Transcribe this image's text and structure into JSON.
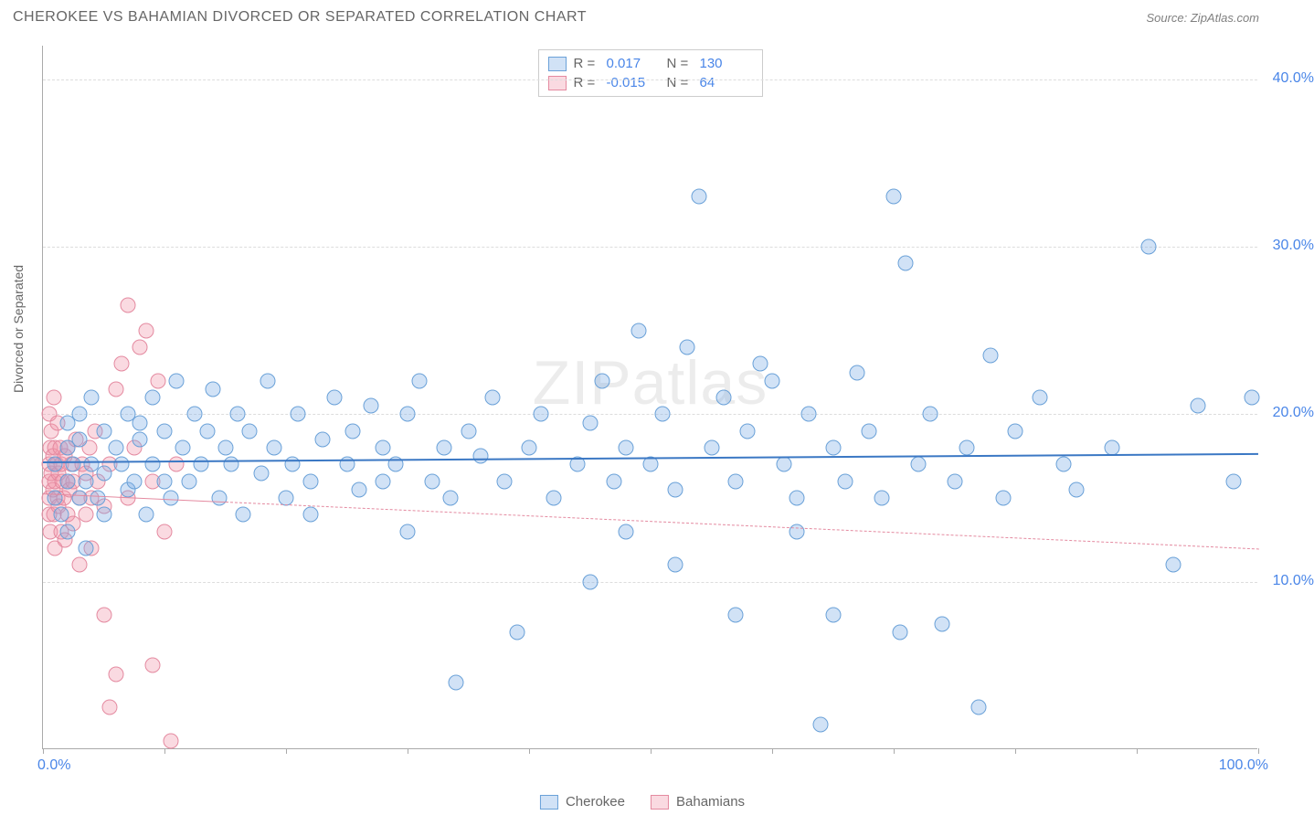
{
  "title": "CHEROKEE VS BAHAMIAN DIVORCED OR SEPARATED CORRELATION CHART",
  "source": "Source: ZipAtlas.com",
  "watermark": "ZIPatlas",
  "ylabel": "Divorced or Separated",
  "chart": {
    "type": "scatter",
    "xlim": [
      0,
      100
    ],
    "ylim": [
      0,
      42
    ],
    "y_ticks": [
      10.0,
      20.0,
      30.0,
      40.0
    ],
    "y_tick_labels": [
      "10.0%",
      "20.0%",
      "30.0%",
      "40.0%"
    ],
    "x_tick_positions": [
      0,
      10,
      20,
      30,
      40,
      50,
      60,
      70,
      80,
      90,
      100
    ],
    "x_axis_labels": [
      {
        "pos": 0,
        "text": "0.0%"
      },
      {
        "pos": 100,
        "text": "100.0%"
      }
    ],
    "background_color": "#ffffff",
    "grid_color": "#dddddd",
    "axis_color": "#aaaaaa",
    "tick_label_color": "#4a86e8",
    "title_color": "#666666",
    "source_color": "#808080",
    "marker_radius": 8.5,
    "marker_stroke_width": 1,
    "series": {
      "cherokee": {
        "label": "Cherokee",
        "fill": "rgba(122,172,230,0.35)",
        "stroke": "#6aa1d8",
        "R": "0.017",
        "N": "130",
        "trend": {
          "y_start": 17.2,
          "y_end": 17.7,
          "color": "#3b78c4",
          "width": 2.5,
          "dash": "solid"
        },
        "points": [
          [
            1,
            15
          ],
          [
            1,
            17
          ],
          [
            1.5,
            14
          ],
          [
            2,
            16
          ],
          [
            2,
            18
          ],
          [
            2,
            19.5
          ],
          [
            2,
            13
          ],
          [
            2.5,
            17
          ],
          [
            3,
            15
          ],
          [
            3,
            18.5
          ],
          [
            3,
            20
          ],
          [
            3.5,
            16
          ],
          [
            3.5,
            12
          ],
          [
            4,
            17
          ],
          [
            4,
            21
          ],
          [
            4.5,
            15
          ],
          [
            5,
            16.5
          ],
          [
            5,
            19
          ],
          [
            5,
            14
          ],
          [
            6,
            18
          ],
          [
            6.5,
            17
          ],
          [
            7,
            20
          ],
          [
            7,
            15.5
          ],
          [
            7.5,
            16
          ],
          [
            8,
            18.5
          ],
          [
            8,
            19.5
          ],
          [
            8.5,
            14
          ],
          [
            9,
            17
          ],
          [
            9,
            21
          ],
          [
            10,
            16
          ],
          [
            10,
            19
          ],
          [
            10.5,
            15
          ],
          [
            11,
            22
          ],
          [
            11.5,
            18
          ],
          [
            12,
            16
          ],
          [
            12.5,
            20
          ],
          [
            13,
            17
          ],
          [
            13.5,
            19
          ],
          [
            14,
            21.5
          ],
          [
            14.5,
            15
          ],
          [
            15,
            18
          ],
          [
            15.5,
            17
          ],
          [
            16,
            20
          ],
          [
            16.5,
            14
          ],
          [
            17,
            19
          ],
          [
            18,
            16.5
          ],
          [
            18.5,
            22
          ],
          [
            19,
            18
          ],
          [
            20,
            15
          ],
          [
            20.5,
            17
          ],
          [
            21,
            20
          ],
          [
            22,
            16
          ],
          [
            22,
            14
          ],
          [
            23,
            18.5
          ],
          [
            24,
            21
          ],
          [
            25,
            17
          ],
          [
            25.5,
            19
          ],
          [
            26,
            15.5
          ],
          [
            27,
            20.5
          ],
          [
            28,
            16
          ],
          [
            28,
            18
          ],
          [
            29,
            17
          ],
          [
            30,
            20
          ],
          [
            30,
            13
          ],
          [
            31,
            22
          ],
          [
            32,
            16
          ],
          [
            33,
            18
          ],
          [
            33.5,
            15
          ],
          [
            34,
            4
          ],
          [
            35,
            19
          ],
          [
            36,
            17.5
          ],
          [
            37,
            21
          ],
          [
            38,
            16
          ],
          [
            39,
            7
          ],
          [
            40,
            18
          ],
          [
            41,
            20
          ],
          [
            42,
            15
          ],
          [
            44,
            17
          ],
          [
            45,
            19.5
          ],
          [
            45,
            10
          ],
          [
            46,
            22
          ],
          [
            47,
            16
          ],
          [
            48,
            18
          ],
          [
            48,
            13
          ],
          [
            49,
            25
          ],
          [
            50,
            17
          ],
          [
            51,
            20
          ],
          [
            52,
            15.5
          ],
          [
            52,
            11
          ],
          [
            53,
            24
          ],
          [
            54,
            33
          ],
          [
            55,
            18
          ],
          [
            56,
            21
          ],
          [
            57,
            16
          ],
          [
            57,
            8
          ],
          [
            58,
            19
          ],
          [
            59,
            23
          ],
          [
            60,
            22
          ],
          [
            61,
            17
          ],
          [
            62,
            15
          ],
          [
            62,
            13
          ],
          [
            63,
            20
          ],
          [
            64,
            1.5
          ],
          [
            65,
            18
          ],
          [
            65,
            8
          ],
          [
            66,
            16
          ],
          [
            67,
            22.5
          ],
          [
            68,
            19
          ],
          [
            69,
            15
          ],
          [
            70,
            33
          ],
          [
            70.5,
            7
          ],
          [
            71,
            29
          ],
          [
            72,
            17
          ],
          [
            73,
            20
          ],
          [
            74,
            7.5
          ],
          [
            75,
            16
          ],
          [
            76,
            18
          ],
          [
            77,
            2.5
          ],
          [
            78,
            23.5
          ],
          [
            79,
            15
          ],
          [
            80,
            19
          ],
          [
            82,
            21
          ],
          [
            84,
            17
          ],
          [
            85,
            15.5
          ],
          [
            88,
            18
          ],
          [
            91,
            30
          ],
          [
            93,
            11
          ],
          [
            95,
            20.5
          ],
          [
            98,
            16
          ],
          [
            99.5,
            21
          ]
        ]
      },
      "bahamians": {
        "label": "Bahamians",
        "fill": "rgba(240,150,170,0.35)",
        "stroke": "#e48aa0",
        "R": "-0.015",
        "N": "64",
        "trend": {
          "y_start": 15.3,
          "y_end": 12.0,
          "color": "#e48aa0",
          "width": 1.2,
          "dash": "dashed",
          "solid_until_x": 15
        },
        "points": [
          [
            0.5,
            17
          ],
          [
            0.5,
            15
          ],
          [
            0.5,
            16
          ],
          [
            0.5,
            20
          ],
          [
            0.5,
            14
          ],
          [
            0.6,
            18
          ],
          [
            0.6,
            13
          ],
          [
            0.7,
            16.5
          ],
          [
            0.7,
            19
          ],
          [
            0.8,
            15.5
          ],
          [
            0.8,
            17.5
          ],
          [
            0.9,
            14
          ],
          [
            0.9,
            21
          ],
          [
            1,
            16
          ],
          [
            1,
            18
          ],
          [
            1,
            12
          ],
          [
            1.1,
            17
          ],
          [
            1.2,
            15
          ],
          [
            1.2,
            19.5
          ],
          [
            1.3,
            16.5
          ],
          [
            1.3,
            14.5
          ],
          [
            1.4,
            18
          ],
          [
            1.5,
            17
          ],
          [
            1.5,
            13
          ],
          [
            1.6,
            16
          ],
          [
            1.7,
            15
          ],
          [
            1.8,
            12.5
          ],
          [
            1.8,
            17.5
          ],
          [
            2,
            16
          ],
          [
            2,
            14
          ],
          [
            2,
            18
          ],
          [
            2.2,
            15.5
          ],
          [
            2.3,
            17
          ],
          [
            2.5,
            13.5
          ],
          [
            2.5,
            16
          ],
          [
            2.7,
            18.5
          ],
          [
            3,
            15
          ],
          [
            3,
            11
          ],
          [
            3.2,
            17
          ],
          [
            3.5,
            14
          ],
          [
            3.5,
            16.5
          ],
          [
            3.8,
            18
          ],
          [
            4,
            12
          ],
          [
            4,
            15
          ],
          [
            4.3,
            19
          ],
          [
            4.5,
            16
          ],
          [
            5,
            14.5
          ],
          [
            5,
            8
          ],
          [
            5.5,
            17
          ],
          [
            5.5,
            2.5
          ],
          [
            6,
            21.5
          ],
          [
            6,
            4.5
          ],
          [
            6.5,
            23
          ],
          [
            7,
            15
          ],
          [
            7,
            26.5
          ],
          [
            7.5,
            18
          ],
          [
            8,
            24
          ],
          [
            8.5,
            25
          ],
          [
            9,
            16
          ],
          [
            9,
            5
          ],
          [
            9.5,
            22
          ],
          [
            10,
            13
          ],
          [
            10.5,
            0.5
          ],
          [
            11,
            17
          ]
        ]
      }
    }
  }
}
